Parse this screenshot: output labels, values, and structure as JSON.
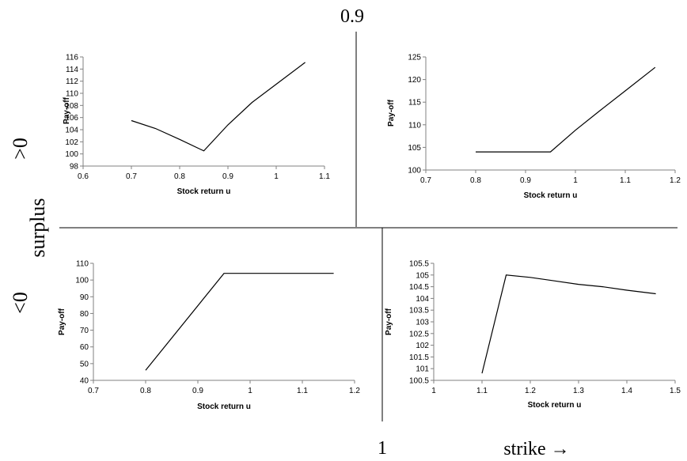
{
  "figure": {
    "top_label": "0.9",
    "bottom_label": "1",
    "x_arrow_label": "strike →",
    "y_label_main": "surplus",
    "y_label_top": ">0",
    "y_label_bottom": "<0"
  },
  "chart_data": [
    {
      "type": "line",
      "title": "",
      "xlabel": "Stock return u",
      "ylabel": "Pay-off",
      "xlim": [
        0.6,
        1.1
      ],
      "ylim": [
        98,
        116
      ],
      "xticks": [
        0.6,
        0.7,
        0.8,
        0.9,
        1,
        1.1
      ],
      "yticks": [
        98,
        100,
        102,
        104,
        106,
        108,
        110,
        112,
        114,
        116
      ],
      "tick_labels_x": [
        "0.6",
        "0.7",
        "0.8",
        "0.9",
        "1",
        "1.1"
      ],
      "tick_labels_y": [
        "98",
        "100",
        "102",
        "104",
        "106",
        "108",
        "110",
        "112",
        "114",
        "116"
      ],
      "grid": false,
      "x": [
        0.7,
        0.75,
        0.8,
        0.85,
        0.9,
        0.95,
        1.0,
        1.06
      ],
      "y": [
        105.5,
        104.2,
        102.4,
        100.5,
        104.8,
        108.5,
        111.5,
        115.1
      ]
    },
    {
      "type": "line",
      "title": "",
      "xlabel": "Stock return u",
      "ylabel": "Pay-off",
      "xlim": [
        0.7,
        1.2
      ],
      "ylim": [
        100,
        125
      ],
      "xticks": [
        0.7,
        0.8,
        0.9,
        1,
        1.1,
        1.2
      ],
      "yticks": [
        100,
        105,
        110,
        115,
        120,
        125
      ],
      "tick_labels_x": [
        "0.7",
        "0.8",
        "0.9",
        "1",
        "1.1",
        "1.2"
      ],
      "tick_labels_y": [
        "100",
        "105",
        "110",
        "115",
        "120",
        "125"
      ],
      "grid": false,
      "x": [
        0.8,
        0.85,
        0.9,
        0.95,
        1.0,
        1.05,
        1.1,
        1.16
      ],
      "y": [
        104,
        104,
        104,
        104,
        108.8,
        113.2,
        117.5,
        122.7
      ]
    },
    {
      "type": "line",
      "title": "",
      "xlabel": "Stock return u",
      "ylabel": "Pay-off",
      "xlim": [
        0.7,
        1.2
      ],
      "ylim": [
        40,
        110
      ],
      "xticks": [
        0.7,
        0.8,
        0.9,
        1,
        1.1,
        1.2
      ],
      "yticks": [
        40,
        50,
        60,
        70,
        80,
        90,
        100,
        110
      ],
      "tick_labels_x": [
        "0.7",
        "0.8",
        "0.9",
        "1",
        "1.1",
        "1.2"
      ],
      "tick_labels_y": [
        "40",
        "50",
        "60",
        "70",
        "80",
        "90",
        "100",
        "110"
      ],
      "grid": false,
      "x": [
        0.8,
        0.95,
        1.0,
        1.05,
        1.1,
        1.16
      ],
      "y": [
        46,
        104,
        104,
        104,
        104,
        104
      ]
    },
    {
      "type": "line",
      "title": "",
      "xlabel": "Stock return u",
      "ylabel": "Pay-off",
      "xlim": [
        1,
        1.5
      ],
      "ylim": [
        100.5,
        105.5
      ],
      "xticks": [
        1,
        1.1,
        1.2,
        1.3,
        1.4,
        1.5
      ],
      "yticks": [
        100.5,
        101,
        101.5,
        102,
        102.5,
        103,
        103.5,
        104,
        104.5,
        105,
        105.5
      ],
      "tick_labels_x": [
        "1",
        "1.1",
        "1.2",
        "1.3",
        "1.4",
        "1.5"
      ],
      "tick_labels_y": [
        "100.5",
        "101",
        "101.5",
        "102",
        "102.5",
        "103",
        "103.5",
        "104",
        "104.5",
        "105",
        "105.5"
      ],
      "grid": false,
      "x": [
        1.1,
        1.15,
        1.2,
        1.25,
        1.3,
        1.35,
        1.4,
        1.46
      ],
      "y": [
        100.8,
        105.0,
        104.9,
        104.75,
        104.6,
        104.5,
        104.35,
        104.2
      ]
    }
  ]
}
